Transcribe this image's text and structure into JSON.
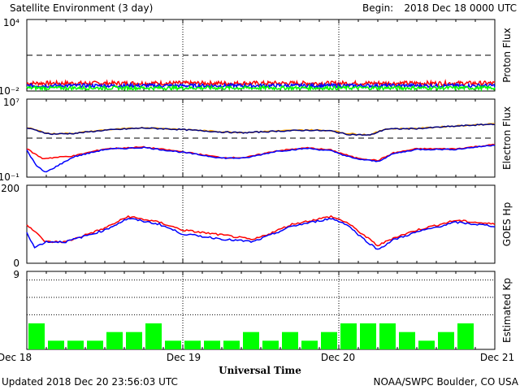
{
  "header": {
    "title": "Satellite Environment (3 day)",
    "begin_label": "Begin:",
    "begin_value": "2018 Dec 18 0000 UTC"
  },
  "footer": {
    "updated": "Updated 2018 Dec 20 23:56:03 UTC",
    "credit": "NOAA/SWPC Boulder, CO USA"
  },
  "x_axis": {
    "label": "Universal Time",
    "ticks": [
      "Dec 18",
      "Dec 19",
      "Dec 20",
      "Dec 21"
    ]
  },
  "colors": {
    "red": "#ff0000",
    "blue": "#0000ff",
    "green": "#00ff00",
    "orange": "#ffa500",
    "navy": "#000080"
  },
  "chart_data": [
    {
      "type": "line",
      "ylabel": "Proton Flux",
      "yscale": "log",
      "ylim": [
        0.01,
        10000
      ],
      "ytick_labels": [
        "10⁴",
        "10⁻²"
      ],
      "threshold_line": 10,
      "x_range_days": [
        0,
        3
      ],
      "series": [
        {
          "color_key": "red",
          "baseline": 0.045,
          "noise": 0.35
        },
        {
          "color_key": "blue",
          "baseline": 0.028,
          "noise": 0.3
        },
        {
          "color_key": "green",
          "baseline": 0.018,
          "noise": 0.3
        }
      ]
    },
    {
      "type": "line",
      "ylabel": "Electron Flux",
      "yscale": "log",
      "ylim": [
        0.1,
        10000000
      ],
      "ytick_labels": [
        "10⁷",
        "10⁻¹"
      ],
      "threshold_line": 1000,
      "series": [
        {
          "color_key": "orange",
          "x": [
            0,
            0.15,
            0.3,
            0.5,
            0.75,
            1.0,
            1.25,
            1.4,
            1.6,
            1.8,
            1.95,
            2.05,
            2.2,
            2.3,
            2.5,
            2.75,
            3.0
          ],
          "y": [
            12000,
            2800,
            3200,
            7000,
            12000,
            8000,
            4500,
            3800,
            5500,
            7000,
            6000,
            3000,
            2200,
            9000,
            10000,
            18000,
            30000
          ]
        },
        {
          "color_key": "navy",
          "x": [
            0,
            0.15,
            0.3,
            0.5,
            0.75,
            1.0,
            1.25,
            1.4,
            1.6,
            1.8,
            1.95,
            2.05,
            2.2,
            2.3,
            2.5,
            2.75,
            3.0
          ],
          "y": [
            11000,
            2600,
            3000,
            6500,
            11000,
            7500,
            4200,
            3600,
            5200,
            6500,
            5500,
            2500,
            2000,
            8500,
            9500,
            17000,
            28000
          ]
        },
        {
          "color_key": "red",
          "x": [
            0,
            0.1,
            0.3,
            0.5,
            0.75,
            1.0,
            1.25,
            1.4,
            1.6,
            1.8,
            1.95,
            2.1,
            2.25,
            2.35,
            2.5,
            2.75,
            3.0
          ],
          "y": [
            80,
            8,
            15,
            80,
            120,
            40,
            10,
            10,
            50,
            100,
            60,
            10,
            5,
            30,
            80,
            80,
            220
          ]
        },
        {
          "color_key": "blue",
          "x": [
            0,
            0.06,
            0.12,
            0.3,
            0.5,
            0.75,
            1.0,
            1.25,
            1.4,
            1.6,
            1.8,
            1.95,
            2.1,
            2.25,
            2.35,
            2.5,
            2.75,
            3.0
          ],
          "y": [
            60,
            1.5,
            0.3,
            12,
            70,
            110,
            35,
            9,
            9,
            45,
            90,
            50,
            8,
            4,
            25,
            70,
            70,
            200
          ]
        }
      ]
    },
    {
      "type": "line",
      "ylabel": "GOES Hp",
      "ylim": [
        0,
        200
      ],
      "ytick_labels": [
        "200",
        "0"
      ],
      "series": [
        {
          "color_key": "red",
          "x": [
            0,
            0.12,
            0.25,
            0.5,
            0.65,
            0.85,
            1.0,
            1.3,
            1.45,
            1.58,
            1.7,
            1.95,
            2.05,
            2.15,
            2.25,
            2.35,
            2.5,
            2.75,
            3.0
          ],
          "y": [
            100,
            55,
            55,
            90,
            120,
            105,
            85,
            70,
            60,
            80,
            100,
            120,
            105,
            75,
            45,
            65,
            85,
            110,
            100
          ]
        },
        {
          "color_key": "blue",
          "x": [
            0,
            0.05,
            0.12,
            0.25,
            0.5,
            0.65,
            0.85,
            1.0,
            1.3,
            1.45,
            1.58,
            1.7,
            1.95,
            2.05,
            2.15,
            2.25,
            2.35,
            2.5,
            2.75,
            3.0
          ],
          "y": [
            80,
            40,
            55,
            55,
            85,
            115,
            100,
            75,
            60,
            55,
            75,
            95,
            115,
            100,
            65,
            35,
            60,
            80,
            105,
            95
          ]
        }
      ]
    },
    {
      "type": "bar",
      "ylabel": "Estimated Kp",
      "ylim": [
        0,
        9
      ],
      "ytick_labels": [
        "9"
      ],
      "dotted_levels": [
        4,
        6,
        8,
        9
      ],
      "bar_color_key": "green",
      "values": [
        3,
        1,
        1,
        1,
        2,
        2,
        3,
        1,
        1,
        1,
        1,
        2,
        1,
        2,
        1,
        2,
        3,
        3,
        3,
        2,
        1,
        2,
        3,
        0
      ]
    }
  ]
}
